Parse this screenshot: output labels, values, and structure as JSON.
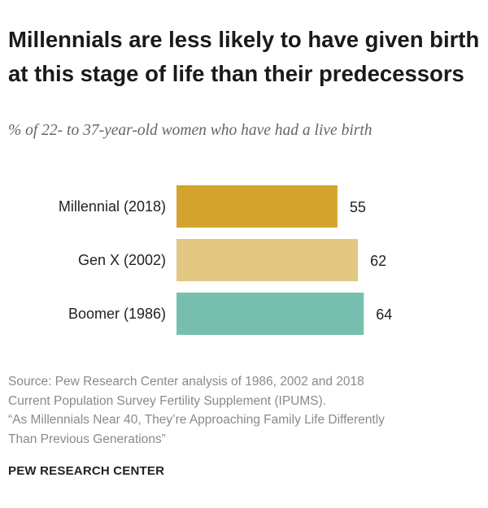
{
  "title": "Millennials are less likely to have given birth at this stage of life than their predecessors",
  "subtitle": "% of 22- to 37-year-old women who have had a live birth",
  "chart_data": {
    "type": "bar",
    "orientation": "horizontal",
    "title": "Millennials are less likely to have given birth at this stage of life than their predecessors",
    "subtitle": "% of 22- to 37-year-old women who have had a live birth",
    "categories": [
      "Millennial (2018)",
      "Gen X (2002)",
      "Boomer (1986)"
    ],
    "values": [
      55,
      62,
      64
    ],
    "colors": [
      "#d4a32e",
      "#e2c882",
      "#76bfae"
    ],
    "xlabel": "",
    "ylabel": "",
    "xlim": [
      0,
      64
    ],
    "grid": false,
    "legend": "none"
  },
  "source": {
    "lines": [
      "Source: Pew Research Center analysis of 1986, 2002 and 2018",
      "Current Population Survey Fertility Supplement (IPUMS).",
      "“As Millennials Near 40, They’re Approaching Family Life Differently",
      "Than Previous Generations”"
    ]
  },
  "brand": "PEW RESEARCH CENTER"
}
